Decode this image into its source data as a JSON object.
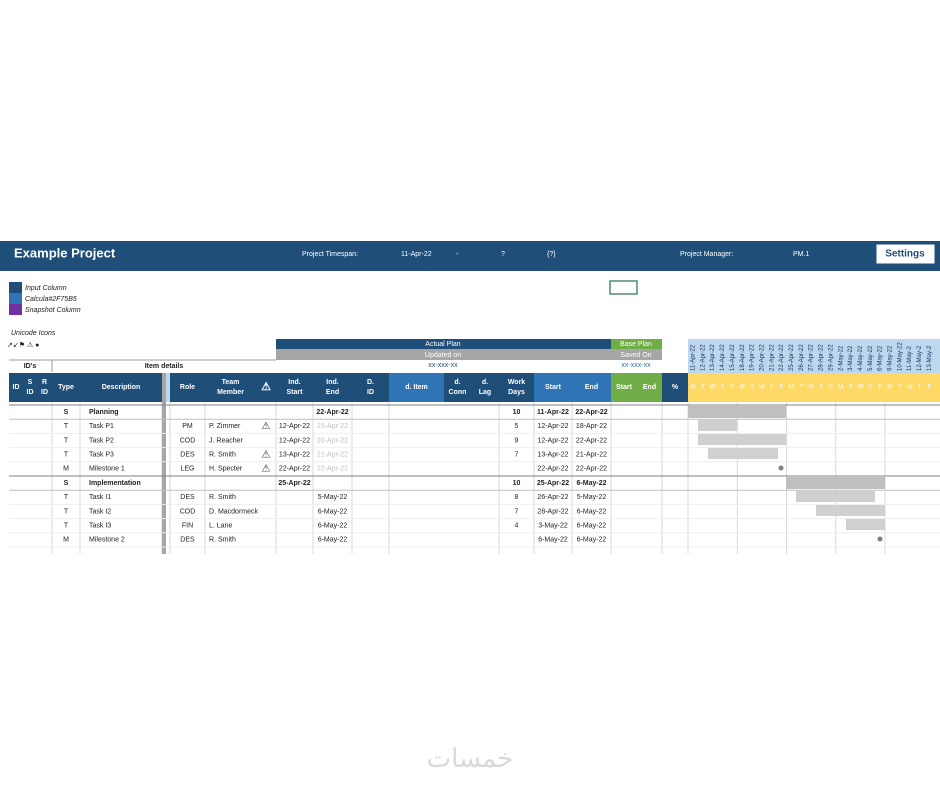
{
  "header": {
    "title": "Example Project",
    "timespan_label": "Project Timespan:",
    "timespan_start": "11-Apr-22",
    "timespan_sep": "-",
    "timespan_end": "?",
    "duration": "{?}",
    "manager_label": "Project Manager:",
    "manager": "PM.1",
    "settings": "Settings"
  },
  "legend": [
    "Input Column",
    "Calcula#2F75B5",
    "Snapshot Column"
  ],
  "icons": {
    "title": "Unicode Icons",
    "symbols": "↗↙⚑ ⚠ ●"
  },
  "groups": {
    "ids": "ID's",
    "item_details": "Item details",
    "actual_plan": "Actual Plan",
    "updated_on": "Updated on",
    "updated_value": "xx-xxx-xx",
    "base_plan": "Base Plan",
    "saved_on": "Saved On",
    "saved_value": "xx-xxx-xx"
  },
  "columns": [
    [
      "ID"
    ],
    [
      "S",
      "ID"
    ],
    [
      "R",
      "ID"
    ],
    [
      "Type"
    ],
    [
      "Description"
    ],
    [
      "Role"
    ],
    [
      "Team",
      "Member"
    ],
    [
      "⚠"
    ],
    [
      "Ind.",
      "Start"
    ],
    [
      "Ind.",
      "End"
    ],
    [
      "D.",
      "ID"
    ],
    [
      "d. Item"
    ],
    [
      "d.",
      "Conn"
    ],
    [
      "d.",
      "Lag"
    ],
    [
      "Work",
      "Days"
    ],
    [
      "Start"
    ],
    [
      "End"
    ],
    [
      "Start"
    ],
    [
      "End"
    ],
    [
      "%"
    ]
  ],
  "rows": [
    {
      "type": "S",
      "description": "Planning",
      "ind_end": "22-Apr-22",
      "work_days": 10,
      "start": "11-Apr-22",
      "end": "22-Apr-22"
    },
    {
      "type": "T",
      "description": "Task P1",
      "role": "PM",
      "member": "P. Zimmer",
      "warn": "⚠",
      "ind_start": "12-Apr-22",
      "ind_end": "15-Apr-22",
      "work_days": 5,
      "start": "12-Apr-22",
      "end": "18-Apr-22"
    },
    {
      "type": "T",
      "description": "Task P2",
      "role": "COD",
      "member": "J. Reacher",
      "ind_start": "12-Apr-22",
      "ind_end": "20-Apr-22",
      "work_days": 9,
      "start": "12-Apr-22",
      "end": "22-Apr-22"
    },
    {
      "type": "T",
      "description": "Task P3",
      "role": "DES",
      "member": "R. Smith",
      "warn": "⚠",
      "ind_start": "13-Apr-22",
      "ind_end": "21-Apr-22",
      "work_days": 7,
      "start": "13-Apr-22",
      "end": "21-Apr-22"
    },
    {
      "type": "M",
      "description": "Milestone 1",
      "role": "LEG",
      "member": "H. Specter",
      "warn": "⚠",
      "ind_start": "22-Apr-22",
      "ind_end": "22-Apr-22",
      "start": "22-Apr-22",
      "end": "22-Apr-22"
    },
    {
      "type": "S",
      "description": "Implementation",
      "ind_start": "25-Apr-22",
      "work_days": 10,
      "start": "25-Apr-22",
      "end": "6-May-22"
    },
    {
      "type": "T",
      "description": "Task I1",
      "role": "DES",
      "member": "R. Smith",
      "ind_end": "5-May-22",
      "work_days": 8,
      "start": "26-Apr-22",
      "end": "5-May-22"
    },
    {
      "type": "T",
      "description": "Task I2",
      "role": "COD",
      "member": "D. Macdormeck",
      "ind_end": "6-May-22",
      "work_days": 7,
      "start": "28-Apr-22",
      "end": "6-May-22"
    },
    {
      "type": "T",
      "description": "Task I3",
      "role": "FIN",
      "member": "L. Lane",
      "ind_end": "6-May-22",
      "work_days": 4,
      "start": "3-May-22",
      "end": "6-May-22"
    },
    {
      "type": "M",
      "description": "Milestone 2",
      "role": "DES",
      "member": "R. Smith",
      "ind_end": "6-May-22",
      "start": "6-May-22",
      "end": "6-May-22"
    }
  ],
  "gantt": {
    "dates": [
      "11-Apr-22",
      "12-Apr-22",
      "13-Apr-22",
      "14-Apr-22",
      "15-Apr-22",
      "18-Apr-22",
      "19-Apr-22",
      "20-Apr-22",
      "21-Apr-22",
      "22-Apr-22",
      "25-Apr-22",
      "26-Apr-22",
      "27-Apr-22",
      "28-Apr-22",
      "29-Apr-22",
      "2-May-22",
      "3-May-22",
      "4-May-22",
      "5-May-22",
      "6-May-22",
      "9-May-22",
      "10-May-22",
      "11-May-2",
      "12-May-2",
      "13-May-2"
    ],
    "weekdays": [
      "M",
      "T",
      "W",
      "T",
      "F"
    ]
  },
  "watermark": "خمسات"
}
